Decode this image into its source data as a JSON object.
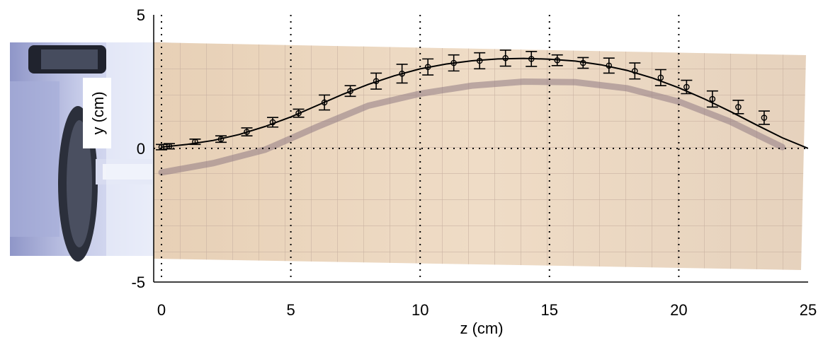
{
  "chart_data": {
    "type": "scatter",
    "xlabel": "z (cm)",
    "ylabel": "y (cm)",
    "xlim": [
      0,
      25
    ],
    "ylim": [
      -5,
      5
    ],
    "xticks": [
      "0",
      "5",
      "10",
      "15",
      "20",
      "25"
    ],
    "yticks": [
      "5",
      "0",
      "-5"
    ],
    "grid": "dotted at major ticks",
    "background": "photograph of bent rod over grid paper with motor assembly on left",
    "points": [
      {
        "x": 0.0,
        "y": 0.05,
        "err": 0.1
      },
      {
        "x": 0.3,
        "y": 0.08,
        "err": 0.1
      },
      {
        "x": 1.3,
        "y": 0.25,
        "err": 0.1
      },
      {
        "x": 2.3,
        "y": 0.35,
        "err": 0.12
      },
      {
        "x": 3.3,
        "y": 0.62,
        "err": 0.15
      },
      {
        "x": 4.3,
        "y": 0.98,
        "err": 0.18
      },
      {
        "x": 5.3,
        "y": 1.32,
        "err": 0.15
      },
      {
        "x": 6.3,
        "y": 1.72,
        "err": 0.28
      },
      {
        "x": 7.3,
        "y": 2.15,
        "err": 0.2
      },
      {
        "x": 8.3,
        "y": 2.52,
        "err": 0.3
      },
      {
        "x": 9.3,
        "y": 2.8,
        "err": 0.35
      },
      {
        "x": 10.3,
        "y": 3.05,
        "err": 0.3
      },
      {
        "x": 11.3,
        "y": 3.2,
        "err": 0.3
      },
      {
        "x": 12.3,
        "y": 3.28,
        "err": 0.3
      },
      {
        "x": 13.3,
        "y": 3.38,
        "err": 0.3
      },
      {
        "x": 14.3,
        "y": 3.35,
        "err": 0.28
      },
      {
        "x": 15.3,
        "y": 3.3,
        "err": 0.2
      },
      {
        "x": 16.3,
        "y": 3.2,
        "err": 0.2
      },
      {
        "x": 17.3,
        "y": 3.1,
        "err": 0.28
      },
      {
        "x": 18.3,
        "y": 2.9,
        "err": 0.3
      },
      {
        "x": 19.3,
        "y": 2.65,
        "err": 0.3
      },
      {
        "x": 20.3,
        "y": 2.3,
        "err": 0.25
      },
      {
        "x": 21.3,
        "y": 1.85,
        "err": 0.3
      },
      {
        "x": 22.3,
        "y": 1.55,
        "err": 0.25
      },
      {
        "x": 23.3,
        "y": 1.15,
        "err": 0.25
      }
    ],
    "fit_curve": [
      [
        0,
        0.05
      ],
      [
        1,
        0.15
      ],
      [
        2,
        0.3
      ],
      [
        3,
        0.52
      ],
      [
        4,
        0.82
      ],
      [
        5,
        1.18
      ],
      [
        6,
        1.6
      ],
      [
        7,
        2.02
      ],
      [
        8,
        2.4
      ],
      [
        9,
        2.72
      ],
      [
        10,
        2.98
      ],
      [
        11,
        3.16
      ],
      [
        12,
        3.28
      ],
      [
        13,
        3.35
      ],
      [
        14,
        3.37
      ],
      [
        15,
        3.34
      ],
      [
        16,
        3.27
      ],
      [
        17,
        3.13
      ],
      [
        18,
        2.92
      ],
      [
        19,
        2.63
      ],
      [
        20,
        2.27
      ],
      [
        21,
        1.85
      ],
      [
        22,
        1.38
      ],
      [
        23,
        0.88
      ],
      [
        24,
        0.4
      ],
      [
        25,
        0.0
      ]
    ],
    "shadow_curve": [
      [
        0,
        -0.9
      ],
      [
        2,
        -0.55
      ],
      [
        4,
        -0.05
      ],
      [
        6,
        0.8
      ],
      [
        8,
        1.6
      ],
      [
        10,
        2.05
      ],
      [
        12,
        2.35
      ],
      [
        14,
        2.5
      ],
      [
        16,
        2.48
      ],
      [
        18,
        2.25
      ],
      [
        20,
        1.75
      ],
      [
        22,
        1.0
      ],
      [
        24,
        0.05
      ]
    ],
    "colors": {
      "markers": "#000000",
      "fit_line": "#000000",
      "grid": "#000000",
      "paper": "#e6cfb6",
      "shadow": "#8f7a83"
    }
  }
}
